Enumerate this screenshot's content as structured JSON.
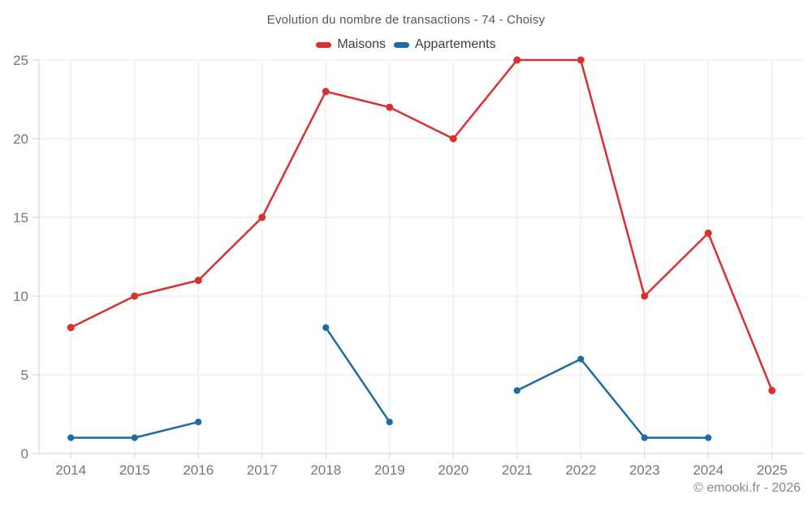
{
  "title": "Evolution du nombre de transactions - 74 - Choisy",
  "legend": {
    "items": [
      {
        "label": "Maisons",
        "color": "#d9302f"
      },
      {
        "label": "Appartements",
        "color": "#1b6ba7"
      }
    ]
  },
  "footer": {
    "credit": "© emooki.fr - 2026"
  },
  "colors": {
    "grid": "#e8e8e8",
    "axis": "#d0d0d0",
    "tick_label": "#767676"
  },
  "chart_data": {
    "type": "line",
    "title": "Evolution du nombre de transactions - 74 - Choisy",
    "categories": [
      "2014",
      "2015",
      "2016",
      "2017",
      "2018",
      "2019",
      "2020",
      "2021",
      "2022",
      "2023",
      "2024",
      "2025"
    ],
    "series": [
      {
        "name": "Maisons",
        "color": "#d9302f",
        "values": [
          8,
          10,
          11,
          15,
          23,
          22,
          20,
          25,
          25,
          10,
          14,
          4
        ]
      },
      {
        "name": "Appartements",
        "color": "#1b6ba7",
        "values": [
          1,
          1,
          2,
          null,
          8,
          2,
          null,
          4,
          6,
          1,
          1,
          null
        ]
      }
    ],
    "xlabel": "",
    "ylabel": "",
    "ylim": [
      0,
      25
    ],
    "yticks": [
      0,
      5,
      10,
      15,
      20,
      25
    ],
    "grid": true,
    "legend_position": "top",
    "annotations": [
      "© emooki.fr - 2026"
    ]
  }
}
